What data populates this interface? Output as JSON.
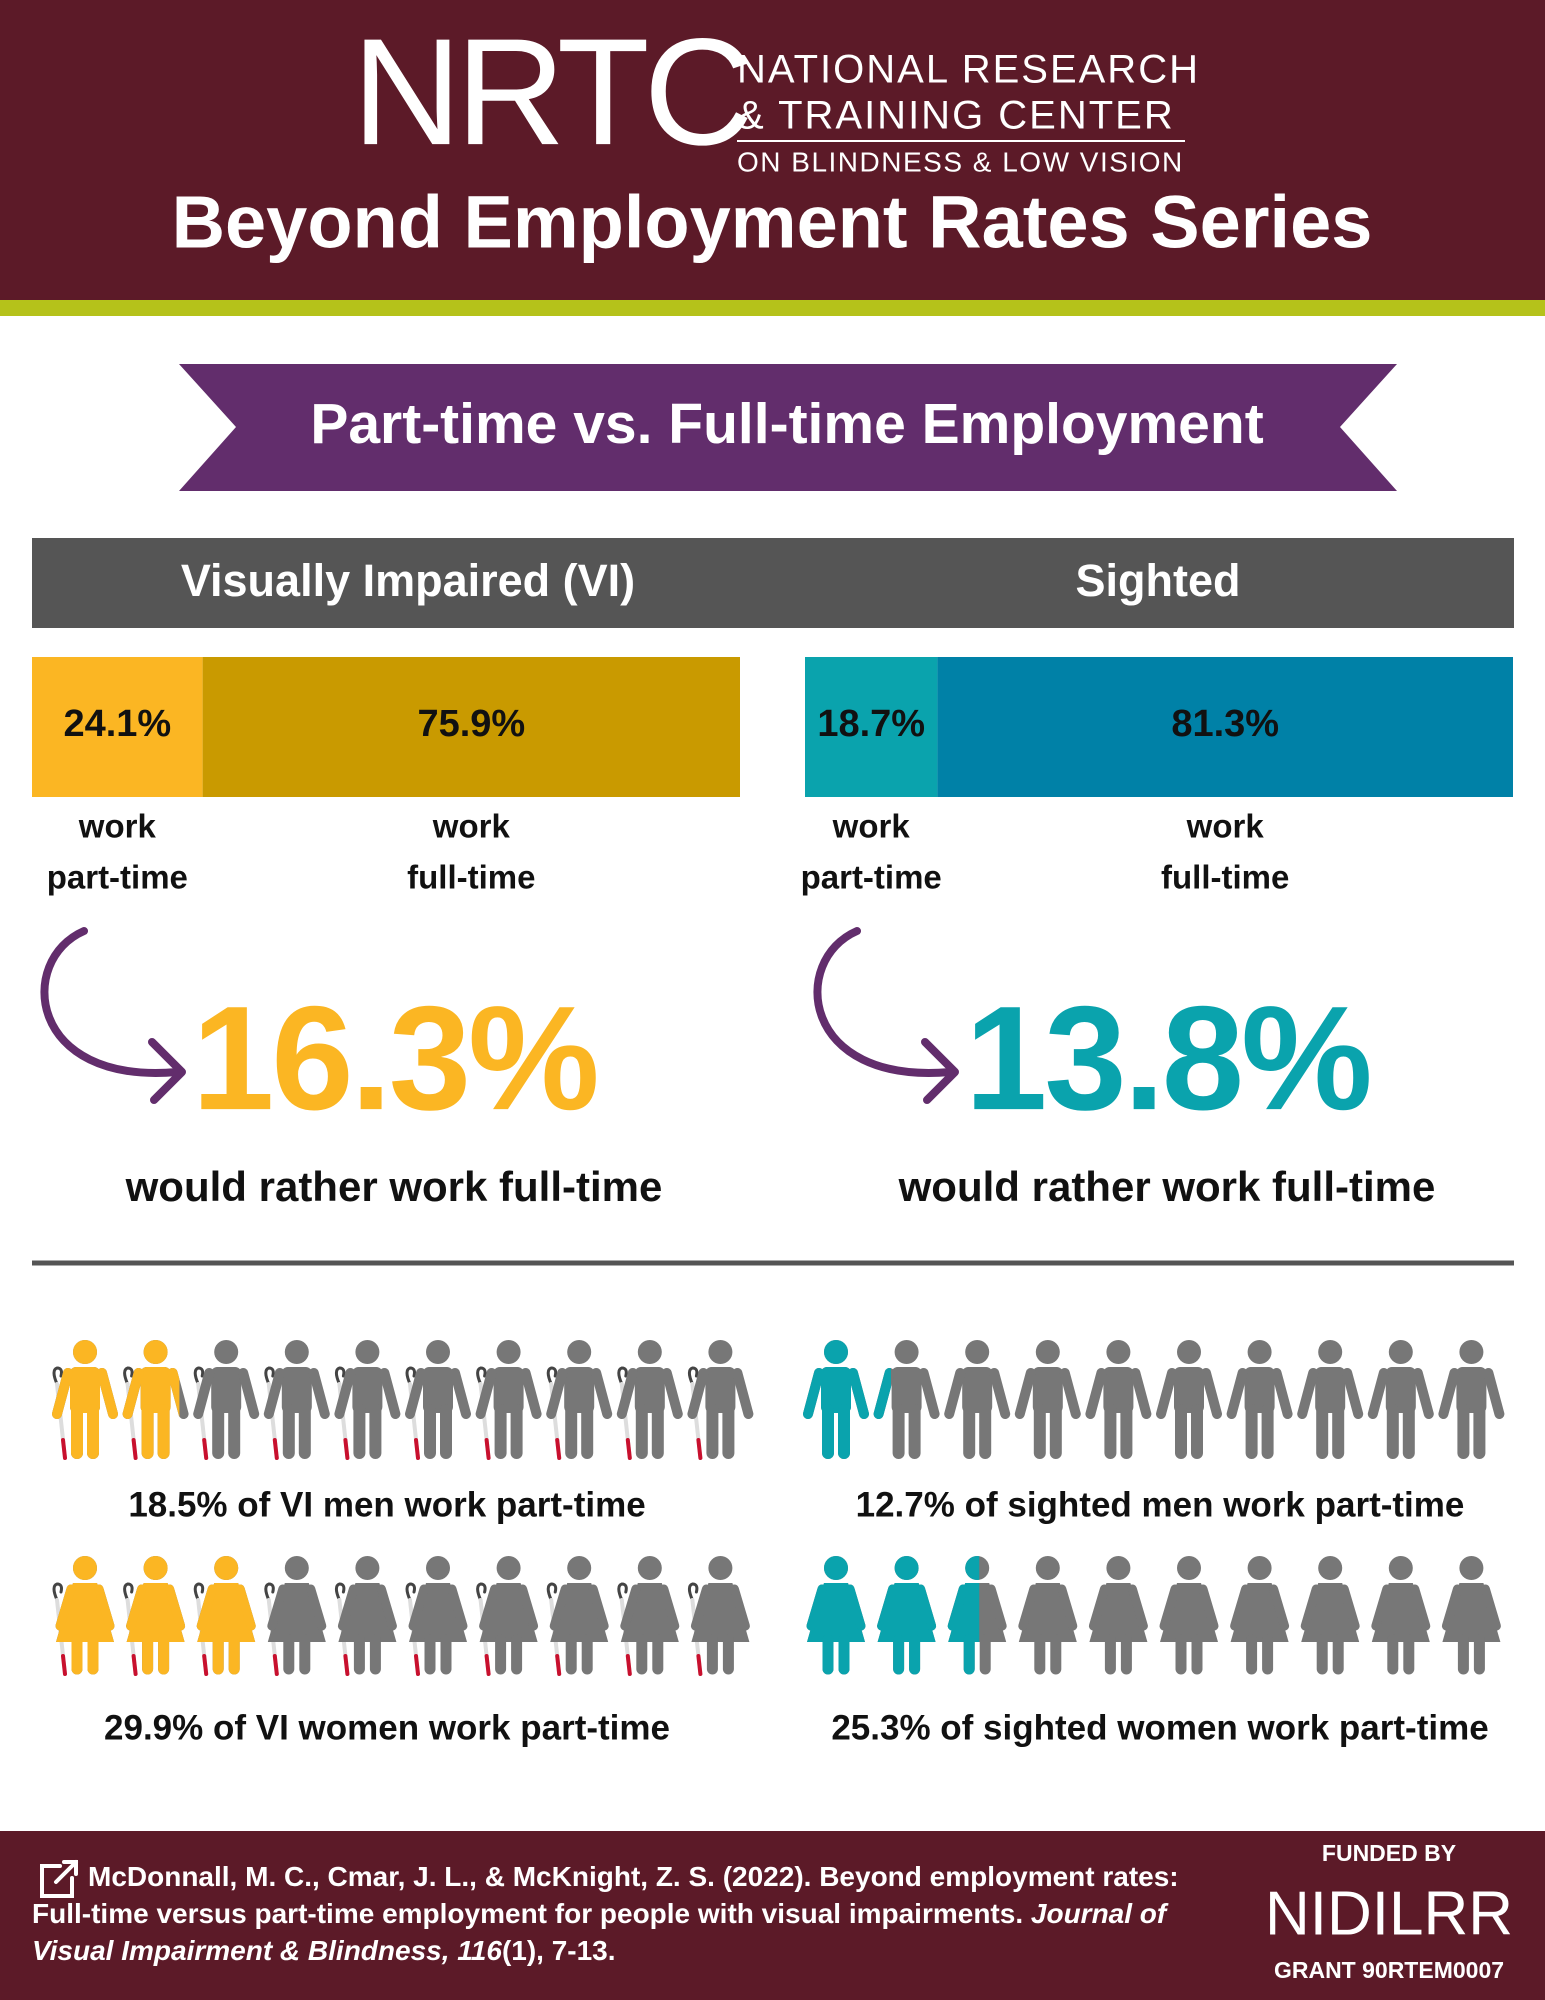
{
  "header": {
    "logo": "NRTC",
    "org_lines": [
      "NATIONAL RESEARCH",
      "& TRAINING CENTER",
      "ON BLINDNESS & LOW VISION"
    ],
    "title": "Beyond Employment Rates Series"
  },
  "banner": "Part-time vs. Full-time Employment",
  "groups": [
    {
      "name": "Visually Impaired (VI)",
      "segments": [
        {
          "value": 24.1,
          "label": "24.1%",
          "caption": [
            "work",
            "part-time"
          ],
          "color": "#fbb623"
        },
        {
          "value": 75.9,
          "label": "75.9%",
          "caption": [
            "work",
            "full-time"
          ],
          "color": "#c99a00"
        }
      ],
      "highlight": "16.3%",
      "highlight_color": "#fbb623",
      "highlight_text": "would rather work full-time",
      "cane": true,
      "icon_color": "#fbb623",
      "icon_rows": [
        {
          "kind": "man",
          "percent": 18.5,
          "caption": "18.5% of VI men work part-time"
        },
        {
          "kind": "woman",
          "percent": 29.9,
          "caption": "29.9% of VI women work part-time"
        }
      ]
    },
    {
      "name": "Sighted",
      "segments": [
        {
          "value": 18.7,
          "label": "18.7%",
          "caption": [
            "work",
            "part-time"
          ],
          "color": "#0aa3ad"
        },
        {
          "value": 81.3,
          "label": "81.3%",
          "caption": [
            "work",
            "full-time"
          ],
          "color": "#0081a7"
        }
      ],
      "highlight": "13.8%",
      "highlight_color": "#0aa3ad",
      "highlight_text": "would rather work full-time",
      "cane": false,
      "icon_color": "#0aa3ad",
      "icon_rows": [
        {
          "kind": "man",
          "percent": 12.7,
          "caption": "12.7% of sighted men work part-time"
        },
        {
          "kind": "woman",
          "percent": 25.3,
          "caption": "25.3% of sighted women work part-time"
        }
      ]
    }
  ],
  "citation": {
    "text": "McDonnall, M. C., Cmar, J. L., & McKnight, Z. S. (2022). Beyond employment rates: Full-time versus part-time employment for people with visual impairments. ",
    "journal": "Journal of Visual Impairment & Blindness, 116",
    "issue": "(1), 7-13."
  },
  "funding": {
    "label": "FUNDED BY",
    "agency": "NIDILRR",
    "grant": "GRANT 90RTEM0007"
  }
}
